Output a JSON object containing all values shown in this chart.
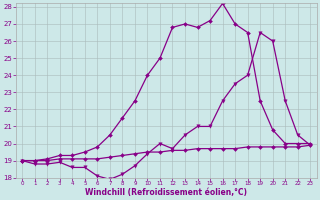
{
  "xlabel": "Windchill (Refroidissement éolien,°C)",
  "bg_color": "#cde8e8",
  "line_color": "#880088",
  "grid_color": "#aabbbb",
  "xlim": [
    -0.5,
    23.5
  ],
  "ylim": [
    18,
    28.2
  ],
  "yticks": [
    18,
    19,
    20,
    21,
    22,
    23,
    24,
    25,
    26,
    27,
    28
  ],
  "xticks": [
    0,
    1,
    2,
    3,
    4,
    5,
    6,
    7,
    8,
    9,
    10,
    11,
    12,
    13,
    14,
    15,
    16,
    17,
    18,
    19,
    20,
    21,
    22,
    23
  ],
  "line1_x": [
    0,
    1,
    2,
    3,
    4,
    5,
    6,
    7,
    8,
    9,
    10,
    11,
    12,
    13,
    14,
    15,
    16,
    17,
    18,
    19,
    20,
    21,
    22,
    23
  ],
  "line1_y": [
    19.0,
    19.0,
    19.0,
    19.1,
    19.1,
    19.1,
    19.1,
    19.2,
    19.3,
    19.4,
    19.5,
    19.5,
    19.6,
    19.6,
    19.7,
    19.7,
    19.7,
    19.7,
    19.8,
    19.8,
    19.8,
    19.8,
    19.8,
    19.9
  ],
  "line2_x": [
    0,
    1,
    2,
    3,
    4,
    5,
    6,
    7,
    8,
    9,
    10,
    11,
    12,
    13,
    14,
    15,
    16,
    17,
    18,
    19,
    20,
    21,
    22,
    23
  ],
  "line2_y": [
    19.0,
    18.8,
    18.8,
    18.9,
    18.6,
    18.6,
    18.1,
    17.9,
    18.2,
    18.7,
    19.4,
    20.0,
    19.7,
    20.5,
    21.0,
    21.0,
    22.5,
    23.5,
    24.0,
    26.5,
    26.0,
    22.5,
    20.5,
    19.9
  ],
  "line3_x": [
    0,
    1,
    2,
    3,
    4,
    5,
    6,
    7,
    8,
    9,
    10,
    11,
    12,
    13,
    14,
    15,
    16,
    17,
    18,
    19,
    20,
    21,
    22,
    23
  ],
  "line3_y": [
    19.0,
    19.0,
    19.1,
    19.3,
    19.3,
    19.5,
    19.8,
    20.5,
    21.5,
    22.5,
    24.0,
    25.0,
    26.8,
    27.0,
    26.8,
    27.2,
    28.2,
    27.0,
    26.5,
    22.5,
    20.8,
    20.0,
    20.0,
    20.0
  ]
}
